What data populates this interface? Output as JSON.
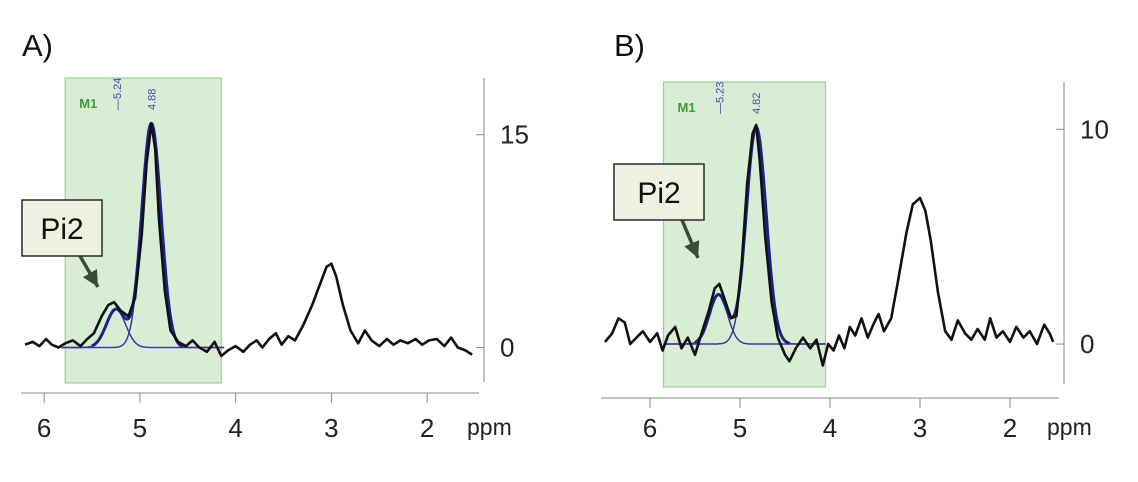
{
  "figure": {
    "layout": "two spectra side by side"
  },
  "chart_data": [
    {
      "type": "line",
      "panel_label": "A)",
      "xlabel": "ppm",
      "xlim": [
        6.2,
        1.5
      ],
      "xticks": [
        6,
        5,
        4,
        3,
        2
      ],
      "yticks": [
        0,
        15
      ],
      "ylim": [
        -2.5,
        19
      ],
      "region": {
        "label": "M1",
        "from_ppm": 5.78,
        "to_ppm": 4.15,
        "color": "#d9ecd4"
      },
      "peak_markers": [
        {
          "ppm": 5.24,
          "label": "5.24"
        },
        {
          "ppm": 4.88,
          "label": "4.88"
        }
      ],
      "annotation": {
        "text": "Pi2",
        "points_to_ppm": 5.27
      },
      "series": [
        {
          "name": "spectrum",
          "color": "#111111",
          "points": [
            [
              6.2,
              0.2
            ],
            [
              6.12,
              0.4
            ],
            [
              6.05,
              0.1
            ],
            [
              5.98,
              0.6
            ],
            [
              5.92,
              0.2
            ],
            [
              5.85,
              0.0
            ],
            [
              5.78,
              0.3
            ],
            [
              5.7,
              0.5
            ],
            [
              5.62,
              0.1
            ],
            [
              5.55,
              0.6
            ],
            [
              5.48,
              1.0
            ],
            [
              5.4,
              2.2
            ],
            [
              5.33,
              3.0
            ],
            [
              5.27,
              3.2
            ],
            [
              5.2,
              2.6
            ],
            [
              5.12,
              2.2
            ],
            [
              5.05,
              3.5
            ],
            [
              4.98,
              8
            ],
            [
              4.93,
              13
            ],
            [
              4.88,
              15.8
            ],
            [
              4.84,
              14
            ],
            [
              4.8,
              9
            ],
            [
              4.74,
              4
            ],
            [
              4.68,
              1.2
            ],
            [
              4.6,
              0.4
            ],
            [
              4.52,
              0.1
            ],
            [
              4.45,
              0.5
            ],
            [
              4.38,
              0.0
            ],
            [
              4.3,
              -0.3
            ],
            [
              4.22,
              0.4
            ],
            [
              4.15,
              -0.6
            ],
            [
              4.08,
              -0.2
            ],
            [
              4.0,
              0.1
            ],
            [
              3.92,
              -0.3
            ],
            [
              3.85,
              0.2
            ],
            [
              3.78,
              0.5
            ],
            [
              3.72,
              0.0
            ],
            [
              3.65,
              0.6
            ],
            [
              3.58,
              1.0
            ],
            [
              3.52,
              0.2
            ],
            [
              3.45,
              0.8
            ],
            [
              3.38,
              0.5
            ],
            [
              3.3,
              1.5
            ],
            [
              3.2,
              3.0
            ],
            [
              3.1,
              4.8
            ],
            [
              3.05,
              5.7
            ],
            [
              3.0,
              5.9
            ],
            [
              2.95,
              5.0
            ],
            [
              2.88,
              3.0
            ],
            [
              2.8,
              1.2
            ],
            [
              2.72,
              0.3
            ],
            [
              2.65,
              1.2
            ],
            [
              2.58,
              0.5
            ],
            [
              2.5,
              0.1
            ],
            [
              2.42,
              0.6
            ],
            [
              2.35,
              0.2
            ],
            [
              2.28,
              0.5
            ],
            [
              2.2,
              0.3
            ],
            [
              2.12,
              0.6
            ],
            [
              2.05,
              0.2
            ],
            [
              1.98,
              0.5
            ],
            [
              1.9,
              0.6
            ],
            [
              1.82,
              0.1
            ],
            [
              1.75,
              0.7
            ],
            [
              1.68,
              0.0
            ],
            [
              1.6,
              -0.2
            ],
            [
              1.53,
              -0.5
            ]
          ]
        },
        {
          "name": "fit 4.88",
          "color": "#3a3aa0",
          "center": 4.88,
          "height": 15.8,
          "width": 0.1,
          "baseline": 0,
          "range": [
            5.82,
            4.12
          ]
        },
        {
          "name": "fit 5.24",
          "color": "#3a3aa0",
          "center": 5.25,
          "height": 2.7,
          "width": 0.1,
          "baseline": 0,
          "range": [
            5.82,
            4.12
          ]
        },
        {
          "name": "fit sum",
          "color": "#20208a",
          "sum_of": [
            "fit 4.88",
            "fit 5.24"
          ],
          "range": [
            5.5,
            4.55
          ]
        }
      ]
    },
    {
      "type": "line",
      "panel_label": "B)",
      "xlabel": "ppm",
      "xlim": [
        6.5,
        1.5
      ],
      "xticks": [
        6,
        5,
        4,
        3,
        2
      ],
      "yticks": [
        0,
        10
      ],
      "ylim": [
        -2,
        12.2
      ],
      "region": {
        "label": "M1",
        "from_ppm": 5.85,
        "to_ppm": 4.05,
        "color": "#d9ecd4"
      },
      "peak_markers": [
        {
          "ppm": 5.23,
          "label": "5.23"
        },
        {
          "ppm": 4.82,
          "label": "4.82"
        }
      ],
      "annotation": {
        "text": "Pi2",
        "points_to_ppm": 5.25
      },
      "series": [
        {
          "name": "spectrum",
          "color": "#111111",
          "points": [
            [
              6.5,
              0.1
            ],
            [
              6.42,
              0.5
            ],
            [
              6.35,
              1.2
            ],
            [
              6.28,
              1.0
            ],
            [
              6.22,
              0.0
            ],
            [
              6.15,
              0.3
            ],
            [
              6.08,
              0.6
            ],
            [
              6.0,
              0.1
            ],
            [
              5.92,
              0.5
            ],
            [
              5.86,
              -0.3
            ],
            [
              5.8,
              0.4
            ],
            [
              5.72,
              0.8
            ],
            [
              5.65,
              -0.2
            ],
            [
              5.58,
              0.3
            ],
            [
              5.5,
              -0.5
            ],
            [
              5.42,
              0.6
            ],
            [
              5.35,
              1.5
            ],
            [
              5.28,
              2.6
            ],
            [
              5.23,
              2.8
            ],
            [
              5.18,
              2.2
            ],
            [
              5.1,
              1.2
            ],
            [
              5.04,
              1.3
            ],
            [
              4.98,
              3.8
            ],
            [
              4.92,
              7.5
            ],
            [
              4.86,
              9.8
            ],
            [
              4.82,
              10.2
            ],
            [
              4.78,
              8.5
            ],
            [
              4.72,
              5.0
            ],
            [
              4.65,
              2.0
            ],
            [
              4.58,
              0.3
            ],
            [
              4.5,
              -0.5
            ],
            [
              4.45,
              -0.8
            ],
            [
              4.38,
              -0.2
            ],
            [
              4.3,
              0.3
            ],
            [
              4.22,
              -0.2
            ],
            [
              4.15,
              0.2
            ],
            [
              4.08,
              -1.0
            ],
            [
              4.02,
              0.0
            ],
            [
              3.96,
              -0.3
            ],
            [
              3.9,
              0.4
            ],
            [
              3.84,
              -0.2
            ],
            [
              3.78,
              0.8
            ],
            [
              3.72,
              0.4
            ],
            [
              3.65,
              1.2
            ],
            [
              3.58,
              0.3
            ],
            [
              3.52,
              0.9
            ],
            [
              3.46,
              1.4
            ],
            [
              3.4,
              0.6
            ],
            [
              3.32,
              1.2
            ],
            [
              3.25,
              2.8
            ],
            [
              3.15,
              5.2
            ],
            [
              3.08,
              6.5
            ],
            [
              3.0,
              6.8
            ],
            [
              2.94,
              6.2
            ],
            [
              2.88,
              4.8
            ],
            [
              2.8,
              2.4
            ],
            [
              2.72,
              0.6
            ],
            [
              2.65,
              0.2
            ],
            [
              2.58,
              1.1
            ],
            [
              2.5,
              0.5
            ],
            [
              2.43,
              0.2
            ],
            [
              2.36,
              0.7
            ],
            [
              2.28,
              0.2
            ],
            [
              2.22,
              1.2
            ],
            [
              2.15,
              0.3
            ],
            [
              2.08,
              0.6
            ],
            [
              2.0,
              0.1
            ],
            [
              1.93,
              0.8
            ],
            [
              1.85,
              0.3
            ],
            [
              1.78,
              0.6
            ],
            [
              1.7,
              0.0
            ],
            [
              1.62,
              0.9
            ],
            [
              1.56,
              0.5
            ],
            [
              1.52,
              0.1
            ]
          ]
        },
        {
          "name": "fit 4.82",
          "color": "#3a3aa0",
          "center": 4.82,
          "height": 10.1,
          "width": 0.11,
          "baseline": 0,
          "range": [
            5.85,
            4.05
          ]
        },
        {
          "name": "fit 5.23",
          "color": "#3a3aa0",
          "center": 5.24,
          "height": 2.3,
          "width": 0.1,
          "baseline": 0,
          "range": [
            5.85,
            4.05
          ]
        },
        {
          "name": "fit sum",
          "color": "#20208a",
          "sum_of": [
            "fit 4.82",
            "fit 5.23"
          ],
          "range": [
            5.5,
            4.45
          ]
        }
      ]
    }
  ]
}
